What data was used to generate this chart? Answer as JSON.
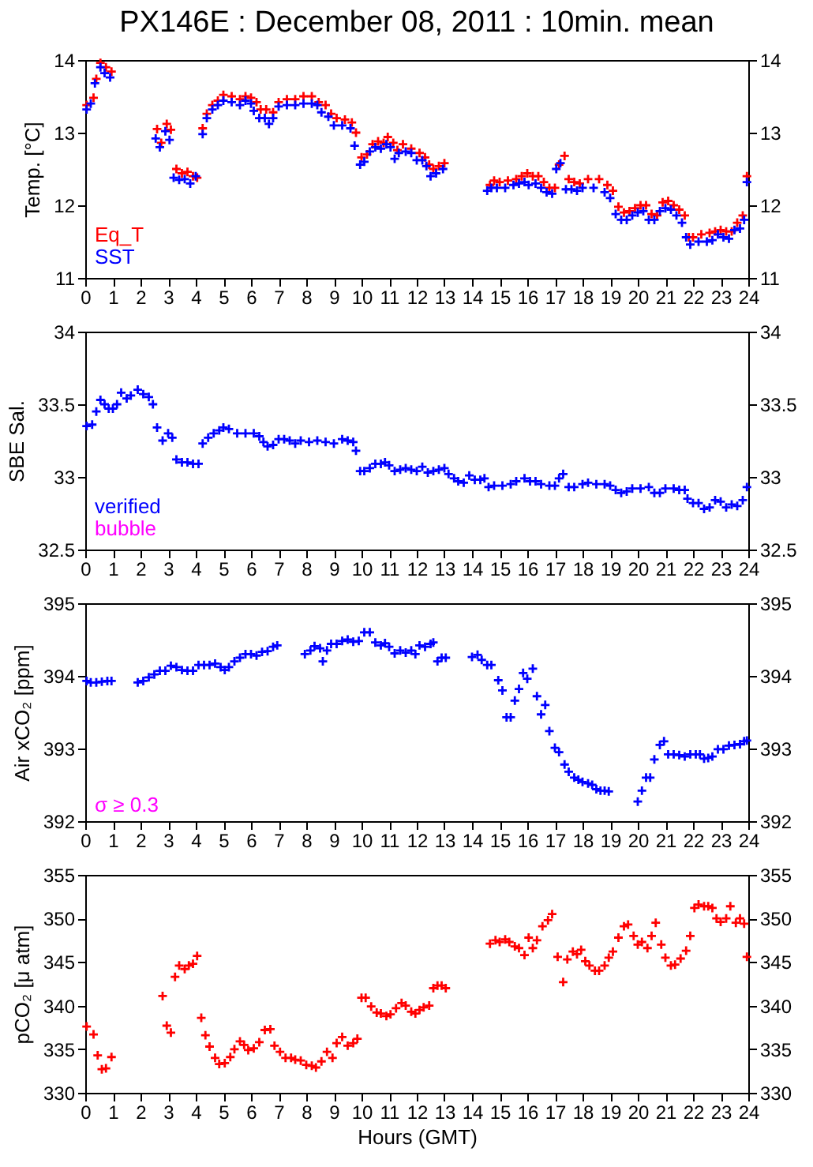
{
  "chart_data": [
    {
      "type": "scatter",
      "title": "PX146E : December 08, 2011 : 10min. mean",
      "ylabel": "Temp. [°C]",
      "marker": "cross",
      "legend": "bottom left",
      "xlim": [
        0,
        24
      ],
      "xticks": [
        0,
        1,
        2,
        3,
        4,
        5,
        6,
        7,
        8,
        9,
        10,
        11,
        12,
        13,
        14,
        15,
        16,
        17,
        18,
        19,
        20,
        21,
        22,
        23,
        24
      ],
      "ylim": [
        11,
        14
      ],
      "yticks": [
        11,
        12,
        13,
        14
      ],
      "y2lim": [
        11,
        14
      ],
      "y2ticks": [
        11,
        12,
        13,
        14
      ],
      "series": [
        {
          "name": "Eq_T",
          "color": "#ff0000",
          "x": [
            0.05,
            0.3,
            0.4,
            0.55,
            0.75,
            0.95,
            2.6,
            2.75,
            2.95,
            3.1,
            3.3,
            3.5,
            3.7,
            3.9,
            4.05,
            4.25,
            4.4,
            4.6,
            4.8,
            5.0,
            5.3,
            5.6,
            5.8,
            6.0,
            6.2,
            6.35,
            6.55,
            6.8,
            7.0,
            7.3,
            7.6,
            7.9,
            8.2,
            8.45,
            8.7,
            8.9,
            9.1,
            9.4,
            9.65,
            9.8,
            10.0,
            10.2,
            10.4,
            10.6,
            10.8,
            10.95,
            11.15,
            11.3,
            11.5,
            11.8,
            12.1,
            12.3,
            12.45,
            12.6,
            12.8,
            13.0,
            14.65,
            14.8,
            15.0,
            15.3,
            15.6,
            15.8,
            16.0,
            16.2,
            16.4,
            16.6,
            16.8,
            17.0,
            17.15,
            17.35,
            17.5,
            17.7,
            17.9,
            18.2,
            18.6,
            18.9,
            19.1,
            19.3,
            19.5,
            19.7,
            19.9,
            20.1,
            20.3,
            20.5,
            20.7,
            20.9,
            21.1,
            21.3,
            21.5,
            21.7,
            21.85,
            22.0,
            22.3,
            22.6,
            22.8,
            23.0,
            23.2,
            23.4,
            23.6,
            23.8,
            23.95
          ],
          "values": [
            13.38,
            13.48,
            13.74,
            13.96,
            13.9,
            13.84,
            13.05,
            12.86,
            13.12,
            13.04,
            12.5,
            12.44,
            12.46,
            12.4,
            12.38,
            13.06,
            13.26,
            13.38,
            13.44,
            13.52,
            13.5,
            13.46,
            13.5,
            13.48,
            13.42,
            13.32,
            13.32,
            13.28,
            13.42,
            13.46,
            13.46,
            13.5,
            13.5,
            13.42,
            13.38,
            13.26,
            13.2,
            13.18,
            13.14,
            13.0,
            12.66,
            12.7,
            12.84,
            12.88,
            12.86,
            12.94,
            12.86,
            12.76,
            12.84,
            12.78,
            12.72,
            12.66,
            12.56,
            12.5,
            12.54,
            12.58,
            12.28,
            12.34,
            12.32,
            12.34,
            12.36,
            12.4,
            12.44,
            12.4,
            12.4,
            12.32,
            12.24,
            12.24,
            12.56,
            12.68,
            12.36,
            12.32,
            12.3,
            12.36,
            12.36,
            12.28,
            12.2,
            11.98,
            11.9,
            11.92,
            11.96,
            12.0,
            12.0,
            11.88,
            11.86,
            12.04,
            12.06,
            12.0,
            11.94,
            11.86,
            11.56,
            11.56,
            11.6,
            11.62,
            11.64,
            11.66,
            11.64,
            11.64,
            11.76,
            11.86,
            12.4
          ]
        },
        {
          "name": "SST",
          "color": "#0000ff",
          "x": [
            0.05,
            0.2,
            0.35,
            0.55,
            0.7,
            0.9,
            2.55,
            2.7,
            2.9,
            3.05,
            3.2,
            3.4,
            3.6,
            3.8,
            4.0,
            4.25,
            4.4,
            4.6,
            4.8,
            5.0,
            5.3,
            5.6,
            5.8,
            6.0,
            6.1,
            6.3,
            6.5,
            6.65,
            6.8,
            7.0,
            7.3,
            7.6,
            7.9,
            8.2,
            8.4,
            8.55,
            8.8,
            9.0,
            9.3,
            9.6,
            9.75,
            9.95,
            10.1,
            10.3,
            10.5,
            10.7,
            10.9,
            11.05,
            11.2,
            11.35,
            11.6,
            11.8,
            12.0,
            12.2,
            12.35,
            12.5,
            12.7,
            12.95,
            14.55,
            14.7,
            14.9,
            15.2,
            15.5,
            15.7,
            15.9,
            16.05,
            16.3,
            16.5,
            16.7,
            16.9,
            17.05,
            17.2,
            17.4,
            17.6,
            17.8,
            18.0,
            18.4,
            18.8,
            19.0,
            19.2,
            19.4,
            19.6,
            19.8,
            20.0,
            20.2,
            20.4,
            20.6,
            20.8,
            21.0,
            21.2,
            21.4,
            21.6,
            21.75,
            21.9,
            22.2,
            22.5,
            22.7,
            22.9,
            23.1,
            23.3,
            23.5,
            23.7,
            23.85,
            23.95
          ],
          "values": [
            13.32,
            13.4,
            13.68,
            13.9,
            13.82,
            13.76,
            12.92,
            12.8,
            13.02,
            12.9,
            12.38,
            12.35,
            12.36,
            12.3,
            12.4,
            12.98,
            13.2,
            13.32,
            13.38,
            13.44,
            13.42,
            13.38,
            13.44,
            13.4,
            13.3,
            13.2,
            13.2,
            13.12,
            13.2,
            13.36,
            13.38,
            13.38,
            13.4,
            13.4,
            13.38,
            13.28,
            13.22,
            13.1,
            13.1,
            13.06,
            12.82,
            12.56,
            12.6,
            12.74,
            12.8,
            12.78,
            12.84,
            12.8,
            12.64,
            12.72,
            12.74,
            12.72,
            12.62,
            12.62,
            12.54,
            12.4,
            12.44,
            12.5,
            12.2,
            12.24,
            12.24,
            12.24,
            12.28,
            12.3,
            12.32,
            12.28,
            12.3,
            12.24,
            12.18,
            12.16,
            12.5,
            12.58,
            12.22,
            12.22,
            12.2,
            12.24,
            12.24,
            12.18,
            12.1,
            11.88,
            11.8,
            11.8,
            11.86,
            11.9,
            11.92,
            11.8,
            11.8,
            11.92,
            11.96,
            11.94,
            11.86,
            11.76,
            11.56,
            11.46,
            11.5,
            11.5,
            11.52,
            11.6,
            11.56,
            11.54,
            11.66,
            11.68,
            11.8,
            12.32
          ]
        }
      ]
    },
    {
      "type": "scatter",
      "ylabel": "SBE Sal.",
      "marker": "cross",
      "legend": "bottom left",
      "xlim": [
        0,
        24
      ],
      "xticks": [
        0,
        1,
        2,
        3,
        4,
        5,
        6,
        7,
        8,
        9,
        10,
        11,
        12,
        13,
        14,
        15,
        16,
        17,
        18,
        19,
        20,
        21,
        22,
        23,
        24
      ],
      "ylim": [
        32.5,
        34
      ],
      "yticks": [
        32.5,
        33,
        33.5,
        34
      ],
      "y2lim": [
        32.5,
        34
      ],
      "y2ticks": [
        32.5,
        33,
        33.5,
        34
      ],
      "series": [
        {
          "name": "verified",
          "color": "#0000ff",
          "x": [
            0.05,
            0.25,
            0.4,
            0.55,
            0.7,
            0.85,
            1.0,
            1.15,
            1.3,
            1.5,
            1.65,
            1.9,
            2.1,
            2.3,
            2.45,
            2.6,
            2.8,
            3.0,
            3.15,
            3.3,
            3.5,
            3.7,
            3.9,
            4.1,
            4.25,
            4.45,
            4.65,
            4.85,
            5.0,
            5.2,
            5.5,
            5.8,
            6.1,
            6.3,
            6.45,
            6.6,
            6.8,
            7.0,
            7.2,
            7.4,
            7.6,
            7.8,
            8.1,
            8.4,
            8.7,
            9.0,
            9.3,
            9.5,
            9.7,
            9.8,
            9.95,
            10.1,
            10.3,
            10.5,
            10.7,
            10.85,
            11.0,
            11.2,
            11.4,
            11.6,
            11.8,
            12.0,
            12.2,
            12.4,
            12.6,
            12.8,
            13.0,
            13.15,
            13.35,
            13.5,
            13.7,
            13.9,
            14.1,
            14.3,
            14.45,
            14.6,
            14.8,
            15.1,
            15.4,
            15.6,
            15.9,
            16.1,
            16.3,
            16.5,
            16.8,
            17.0,
            17.15,
            17.3,
            17.5,
            17.7,
            18.0,
            18.2,
            18.5,
            18.8,
            19.0,
            19.2,
            19.4,
            19.6,
            19.8,
            20.1,
            20.4,
            20.6,
            20.8,
            21.0,
            21.3,
            21.5,
            21.7,
            21.8,
            22.0,
            22.2,
            22.4,
            22.6,
            22.8,
            23.0,
            23.2,
            23.4,
            23.6,
            23.8,
            23.95
          ],
          "values": [
            33.35,
            33.36,
            33.45,
            33.53,
            33.5,
            33.47,
            33.47,
            33.5,
            33.58,
            33.54,
            33.56,
            33.6,
            33.57,
            33.55,
            33.5,
            33.34,
            33.25,
            33.3,
            33.27,
            33.12,
            33.1,
            33.1,
            33.09,
            33.09,
            33.23,
            33.27,
            33.3,
            33.32,
            33.34,
            33.33,
            33.3,
            33.3,
            33.3,
            33.28,
            33.24,
            33.21,
            33.22,
            33.26,
            33.26,
            33.25,
            33.23,
            33.25,
            33.24,
            33.25,
            33.24,
            33.23,
            33.26,
            33.25,
            33.24,
            33.18,
            33.04,
            33.04,
            33.06,
            33.09,
            33.09,
            33.1,
            33.08,
            33.04,
            33.05,
            33.06,
            33.05,
            33.04,
            33.07,
            33.03,
            33.04,
            33.05,
            33.06,
            33.02,
            32.99,
            32.97,
            32.96,
            33.01,
            32.98,
            32.98,
            32.99,
            32.93,
            32.94,
            32.94,
            32.95,
            32.97,
            32.99,
            32.97,
            32.97,
            32.95,
            32.94,
            32.94,
            32.99,
            33.02,
            32.93,
            32.93,
            32.95,
            32.96,
            32.95,
            32.95,
            32.94,
            32.91,
            32.89,
            32.9,
            32.92,
            32.92,
            32.93,
            32.89,
            32.89,
            32.92,
            32.92,
            32.91,
            32.91,
            32.85,
            32.82,
            32.82,
            32.78,
            32.79,
            32.84,
            32.83,
            32.79,
            32.81,
            32.8,
            32.84,
            32.93
          ]
        },
        {
          "name": "bubble",
          "color": "#ff00ff"
        }
      ]
    },
    {
      "type": "scatter",
      "ylabel": "Air xCO₂ [ppm]",
      "marker": "cross",
      "annotations": [
        "σ ≥ 0.3"
      ],
      "xlim": [
        0,
        24
      ],
      "xticks": [
        0,
        1,
        2,
        3,
        4,
        5,
        6,
        7,
        8,
        9,
        10,
        11,
        12,
        13,
        14,
        15,
        16,
        17,
        18,
        19,
        20,
        21,
        22,
        23,
        24
      ],
      "ylim": [
        392,
        395
      ],
      "yticks": [
        392,
        393,
        394,
        395
      ],
      "y2lim": [
        392,
        395
      ],
      "y2ticks": [
        392,
        393,
        394,
        395
      ],
      "series": [
        {
          "color": "#0000ff",
          "x": [
            0.05,
            0.2,
            0.4,
            0.6,
            0.8,
            0.95,
            1.9,
            2.1,
            2.3,
            2.5,
            2.7,
            2.9,
            3.1,
            3.3,
            3.5,
            3.7,
            3.9,
            4.1,
            4.3,
            4.5,
            4.7,
            4.9,
            5.05,
            5.2,
            5.4,
            5.6,
            5.8,
            6.0,
            6.2,
            6.4,
            6.6,
            6.8,
            6.95,
            7.95,
            8.15,
            8.3,
            8.5,
            8.6,
            8.75,
            8.9,
            9.1,
            9.3,
            9.5,
            9.7,
            9.9,
            10.1,
            10.3,
            10.5,
            10.7,
            10.85,
            11.0,
            11.2,
            11.4,
            11.6,
            11.8,
            11.95,
            12.1,
            12.3,
            12.5,
            12.6,
            12.75,
            12.9,
            13.05,
            14.0,
            14.2,
            14.35,
            14.55,
            14.7,
            14.95,
            15.1,
            15.25,
            15.4,
            15.55,
            15.7,
            15.85,
            16.0,
            16.2,
            16.35,
            16.5,
            16.65,
            16.8,
            17.0,
            17.15,
            17.35,
            17.5,
            17.7,
            17.85,
            18.0,
            18.2,
            18.35,
            18.5,
            18.65,
            18.8,
            18.95,
            20.0,
            20.15,
            20.3,
            20.45,
            20.6,
            20.8,
            20.95,
            21.1,
            21.3,
            21.5,
            21.7,
            21.9,
            22.1,
            22.25,
            22.4,
            22.55,
            22.7,
            22.9,
            23.1,
            23.3,
            23.5,
            23.7,
            23.85,
            23.95
          ],
          "values": [
            393.93,
            393.91,
            393.91,
            393.92,
            393.93,
            393.93,
            393.91,
            393.93,
            393.98,
            394.02,
            394.07,
            394.07,
            394.14,
            394.12,
            394.08,
            394.07,
            394.07,
            394.15,
            394.15,
            394.15,
            394.17,
            394.12,
            394.08,
            394.12,
            394.2,
            394.25,
            394.3,
            394.3,
            394.28,
            394.33,
            394.34,
            394.4,
            394.42,
            394.3,
            394.35,
            394.41,
            394.38,
            394.2,
            394.35,
            394.44,
            394.44,
            394.48,
            394.5,
            394.47,
            394.48,
            394.6,
            394.6,
            394.46,
            394.42,
            394.45,
            394.4,
            394.31,
            394.35,
            394.32,
            394.35,
            394.3,
            394.42,
            394.4,
            394.44,
            394.46,
            394.2,
            394.25,
            394.25,
            394.26,
            394.29,
            394.22,
            394.15,
            394.15,
            393.94,
            393.8,
            393.43,
            393.43,
            393.66,
            393.82,
            394.04,
            393.96,
            394.1,
            393.72,
            393.47,
            393.6,
            393.24,
            393.01,
            392.95,
            392.78,
            392.68,
            392.6,
            392.57,
            392.54,
            392.52,
            392.5,
            392.44,
            392.42,
            392.42,
            392.41,
            392.27,
            392.42,
            392.6,
            392.6,
            392.85,
            393.05,
            393.1,
            392.92,
            392.92,
            392.91,
            392.89,
            392.92,
            392.92,
            392.92,
            392.86,
            392.87,
            392.89,
            392.99,
            392.99,
            393.04,
            393.05,
            393.06,
            393.1,
            393.11
          ]
        }
      ]
    },
    {
      "type": "scatter",
      "ylabel": "pCO₂ [μ atm]",
      "xlabel": "Hours (GMT)",
      "marker": "cross",
      "xlim": [
        0,
        24
      ],
      "xticks": [
        0,
        1,
        2,
        3,
        4,
        5,
        6,
        7,
        8,
        9,
        10,
        11,
        12,
        13,
        14,
        15,
        16,
        17,
        18,
        19,
        20,
        21,
        22,
        23,
        24
      ],
      "ylim": [
        330,
        355
      ],
      "yticks": [
        330,
        335,
        340,
        345,
        350,
        355
      ],
      "y2lim": [
        330,
        355
      ],
      "y2ticks": [
        330,
        335,
        340,
        345,
        350,
        355
      ],
      "series": [
        {
          "color": "#ff0000",
          "x": [
            0.05,
            0.3,
            0.45,
            0.6,
            0.75,
            0.95,
            2.8,
            2.95,
            3.1,
            3.25,
            3.4,
            3.6,
            3.75,
            3.9,
            4.05,
            4.2,
            4.35,
            4.5,
            4.7,
            4.85,
            5.05,
            5.25,
            5.4,
            5.6,
            5.75,
            5.9,
            6.1,
            6.3,
            6.5,
            6.7,
            6.85,
            7.05,
            7.25,
            7.45,
            7.6,
            7.8,
            8.0,
            8.2,
            8.35,
            8.55,
            8.75,
            8.95,
            9.1,
            9.3,
            9.5,
            9.7,
            9.85,
            10.0,
            10.15,
            10.35,
            10.55,
            10.7,
            10.9,
            11.05,
            11.25,
            11.45,
            11.6,
            11.8,
            11.95,
            12.1,
            12.25,
            12.45,
            12.6,
            12.75,
            12.9,
            13.05,
            14.65,
            14.85,
            15.0,
            15.2,
            15.35,
            15.55,
            15.7,
            15.9,
            16.05,
            16.2,
            16.35,
            16.55,
            16.75,
            16.9,
            17.1,
            17.3,
            17.45,
            17.65,
            17.8,
            17.95,
            18.1,
            18.25,
            18.45,
            18.6,
            18.8,
            18.95,
            19.1,
            19.3,
            19.5,
            19.65,
            19.85,
            20.0,
            20.15,
            20.35,
            20.5,
            20.65,
            20.85,
            21.0,
            21.2,
            21.35,
            21.55,
            21.75,
            21.9,
            22.05,
            22.2,
            22.4,
            22.55,
            22.7,
            22.85,
            23.0,
            23.2,
            23.35,
            23.55,
            23.7,
            23.85,
            23.95
          ],
          "values": [
            337.6,
            336.7,
            334.3,
            332.7,
            332.8,
            334.1,
            341.1,
            337.7,
            336.9,
            343.3,
            344.6,
            344.2,
            344.6,
            344.8,
            345.7,
            338.6,
            336.6,
            335.3,
            334.0,
            333.3,
            333.4,
            334.1,
            335.0,
            335.9,
            335.5,
            334.9,
            335.1,
            335.8,
            337.2,
            337.3,
            335.4,
            334.7,
            334.0,
            334.0,
            333.8,
            333.7,
            333.2,
            333.1,
            332.9,
            333.6,
            334.7,
            334.0,
            335.7,
            336.4,
            335.4,
            335.7,
            336.2,
            340.9,
            340.9,
            339.9,
            339.2,
            339.1,
            338.8,
            339.0,
            339.7,
            340.3,
            340.0,
            339.3,
            339.1,
            339.5,
            339.8,
            340.0,
            342.0,
            342.3,
            342.3,
            342.0,
            347.1,
            347.5,
            347.3,
            347.6,
            347.3,
            346.8,
            346.6,
            345.8,
            347.8,
            346.6,
            347.5,
            349.1,
            349.8,
            350.5,
            345.6,
            342.7,
            345.3,
            346.2,
            345.9,
            346.4,
            345.1,
            344.6,
            344.0,
            344.0,
            344.6,
            345.5,
            346.2,
            347.8,
            349.1,
            349.3,
            348.0,
            347.0,
            347.3,
            346.6,
            348.0,
            349.5,
            347.0,
            345.5,
            344.6,
            344.7,
            345.4,
            346.3,
            348.0,
            351.2,
            351.6,
            351.4,
            351.4,
            351.2,
            350.0,
            349.6,
            350.0,
            351.4,
            349.5,
            350.0,
            349.4,
            345.6
          ]
        }
      ]
    }
  ]
}
